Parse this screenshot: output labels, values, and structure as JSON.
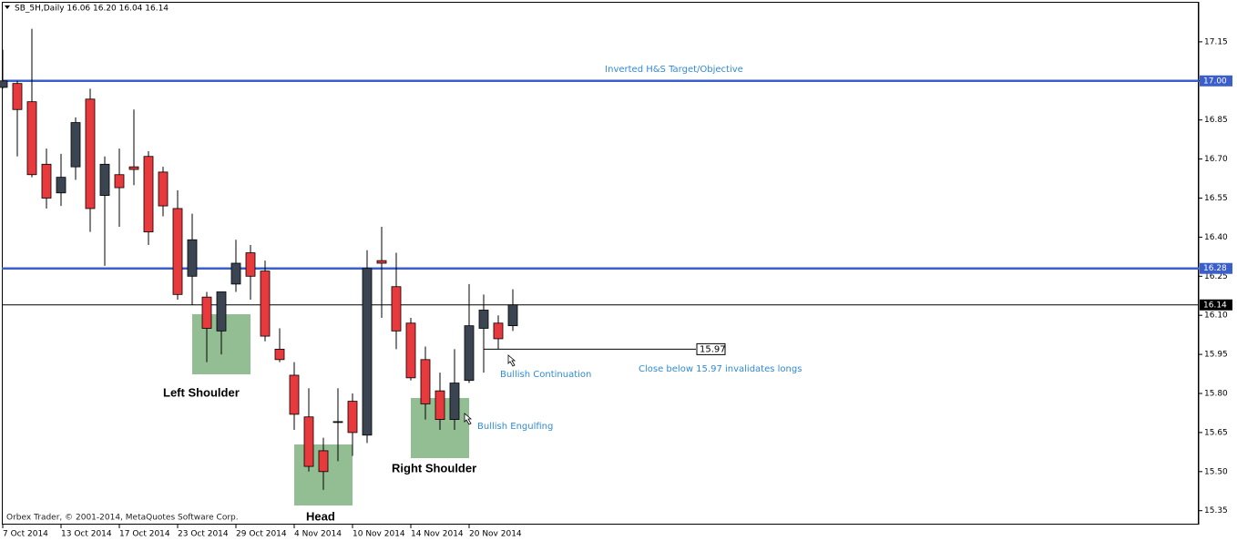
{
  "chart_data": {
    "type": "candlestick",
    "title": "SB_5H,Daily  16.06 16.20 16.04 16.14",
    "watermark": "Orbex Trader, © 2001-2014, MetaQuotes Software Corp.",
    "categories": [
      "7 Oct 2014",
      null,
      null,
      null,
      "13 Oct 2014",
      null,
      null,
      null,
      "17 Oct 2014",
      null,
      null,
      null,
      "23 Oct 2014",
      null,
      null,
      null,
      "29 Oct 2014",
      null,
      null,
      null,
      "4 Nov 2014",
      null,
      null,
      null,
      "10 Nov 2014",
      null,
      null,
      null,
      "14 Nov 2014",
      null,
      null,
      null,
      "20 Nov 2014",
      null,
      null,
      null
    ],
    "open": [
      16.975,
      16.99,
      16.92,
      16.68,
      16.57,
      16.67,
      16.93,
      16.56,
      16.64,
      16.67,
      16.71,
      16.65,
      16.51,
      16.25,
      16.17,
      16.04,
      16.22,
      16.34,
      16.27,
      15.97,
      15.87,
      15.71,
      15.58,
      15.69,
      15.77,
      15.64,
      16.31,
      16.21,
      16.07,
      15.93,
      15.81,
      15.7,
      15.85,
      16.05,
      16.07,
      16.06
    ],
    "high": [
      17.12,
      17.0,
      17.2,
      16.74,
      16.72,
      16.86,
      16.97,
      16.71,
      16.74,
      16.89,
      16.73,
      16.67,
      16.58,
      16.49,
      16.19,
      16.19,
      16.39,
      16.37,
      16.31,
      16.05,
      15.92,
      15.82,
      15.63,
      15.82,
      15.8,
      16.35,
      16.44,
      16.34,
      16.09,
      15.98,
      15.88,
      15.97,
      16.22,
      16.18,
      16.1,
      16.2
    ],
    "low": [
      16.97,
      16.71,
      16.63,
      16.51,
      16.52,
      16.62,
      16.42,
      16.29,
      16.44,
      16.6,
      16.37,
      16.48,
      16.16,
      16.14,
      15.92,
      15.95,
      16.19,
      16.16,
      16.0,
      15.92,
      15.66,
      15.5,
      15.43,
      15.54,
      15.56,
      15.61,
      16.09,
      15.97,
      15.85,
      15.7,
      15.66,
      15.66,
      15.84,
      15.88,
      15.97,
      16.04
    ],
    "close": [
      17.0,
      16.89,
      16.64,
      16.55,
      16.63,
      16.84,
      16.51,
      16.68,
      16.59,
      16.66,
      16.42,
      16.52,
      16.18,
      16.39,
      16.05,
      16.19,
      16.3,
      16.25,
      16.02,
      15.93,
      15.72,
      15.52,
      15.5,
      15.692,
      15.65,
      16.28,
      16.3,
      16.04,
      15.86,
      15.76,
      15.7,
      15.84,
      16.06,
      16.12,
      16.01,
      16.14
    ],
    "up_color": "#3b4552",
    "down_color": "#e8393c",
    "ylim": [
      15.3,
      17.3
    ],
    "yticks": [
      17.15,
      {
        "value": 17,
        "label": "17.00"
      },
      16.85,
      {
        "value": 16.7,
        "label": "16.70"
      },
      16.55,
      {
        "value": 16.4,
        "label": "16.40"
      },
      16.25,
      {
        "value": 16.1,
        "label": "16.10"
      },
      15.95,
      {
        "value": 15.8,
        "label": "15.80"
      },
      15.65,
      {
        "value": 15.5,
        "label": "15.50"
      },
      15.35
    ],
    "hlines": [
      {
        "value": 17,
        "label": "17.00",
        "color": "#3a5fcd"
      },
      {
        "value": 16.28,
        "label": "16.28",
        "color": "#3a5fcd"
      },
      {
        "value": 16.14,
        "label": "16.14",
        "color": "#000000"
      }
    ],
    "level_line": {
      "value": 15.97,
      "label": "15.97"
    },
    "annotations": [
      "Inverted H&S Target/Objective",
      "Bullish Continuation",
      "Close below 15.97 invalidates longs",
      "Bullish Engulfing",
      "Left Shoulder",
      "Head",
      "Right Shoulder"
    ]
  }
}
